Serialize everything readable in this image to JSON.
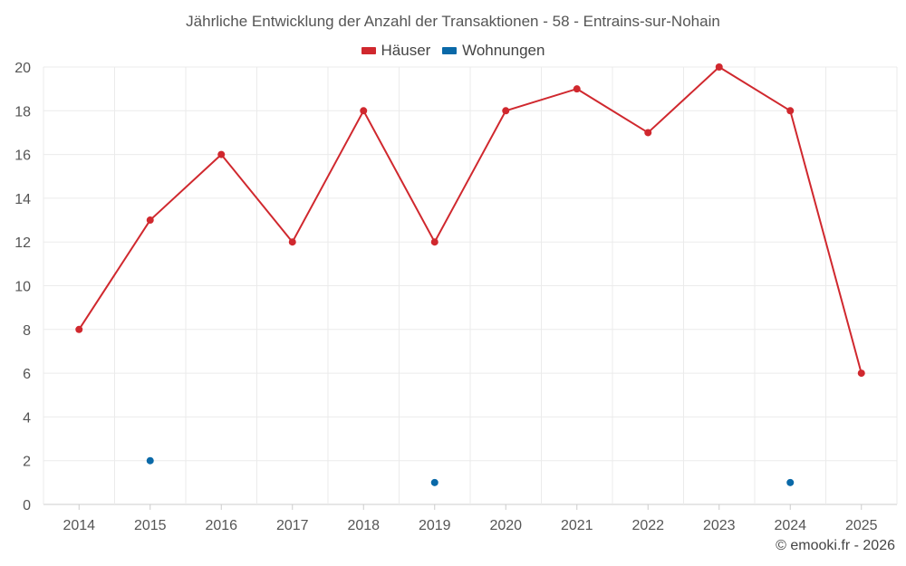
{
  "chart_data": {
    "type": "line",
    "title": "Jährliche Entwicklung der Anzahl der Transaktionen - 58 - Entrains-sur-Nohain",
    "categories": [
      2014,
      2015,
      2016,
      2017,
      2018,
      2019,
      2020,
      2021,
      2022,
      2023,
      2024,
      2025
    ],
    "series": [
      {
        "name": "Häuser",
        "color": "#d0282e",
        "line": true,
        "values": [
          8,
          13,
          16,
          12,
          18,
          12,
          18,
          19,
          17,
          20,
          18,
          6
        ]
      },
      {
        "name": "Wohnungen",
        "color": "#0a69a8",
        "line": false,
        "values": [
          null,
          2,
          null,
          null,
          null,
          1,
          null,
          null,
          null,
          null,
          1,
          null
        ]
      }
    ],
    "ylim": [
      0,
      20
    ],
    "yticks": [
      0,
      2,
      4,
      6,
      8,
      10,
      12,
      14,
      16,
      18,
      20
    ],
    "xlabel": "",
    "ylabel": "",
    "grid": true,
    "legend_position": "top-center"
  },
  "footer": {
    "credit": "© emooki.fr - 2026"
  }
}
